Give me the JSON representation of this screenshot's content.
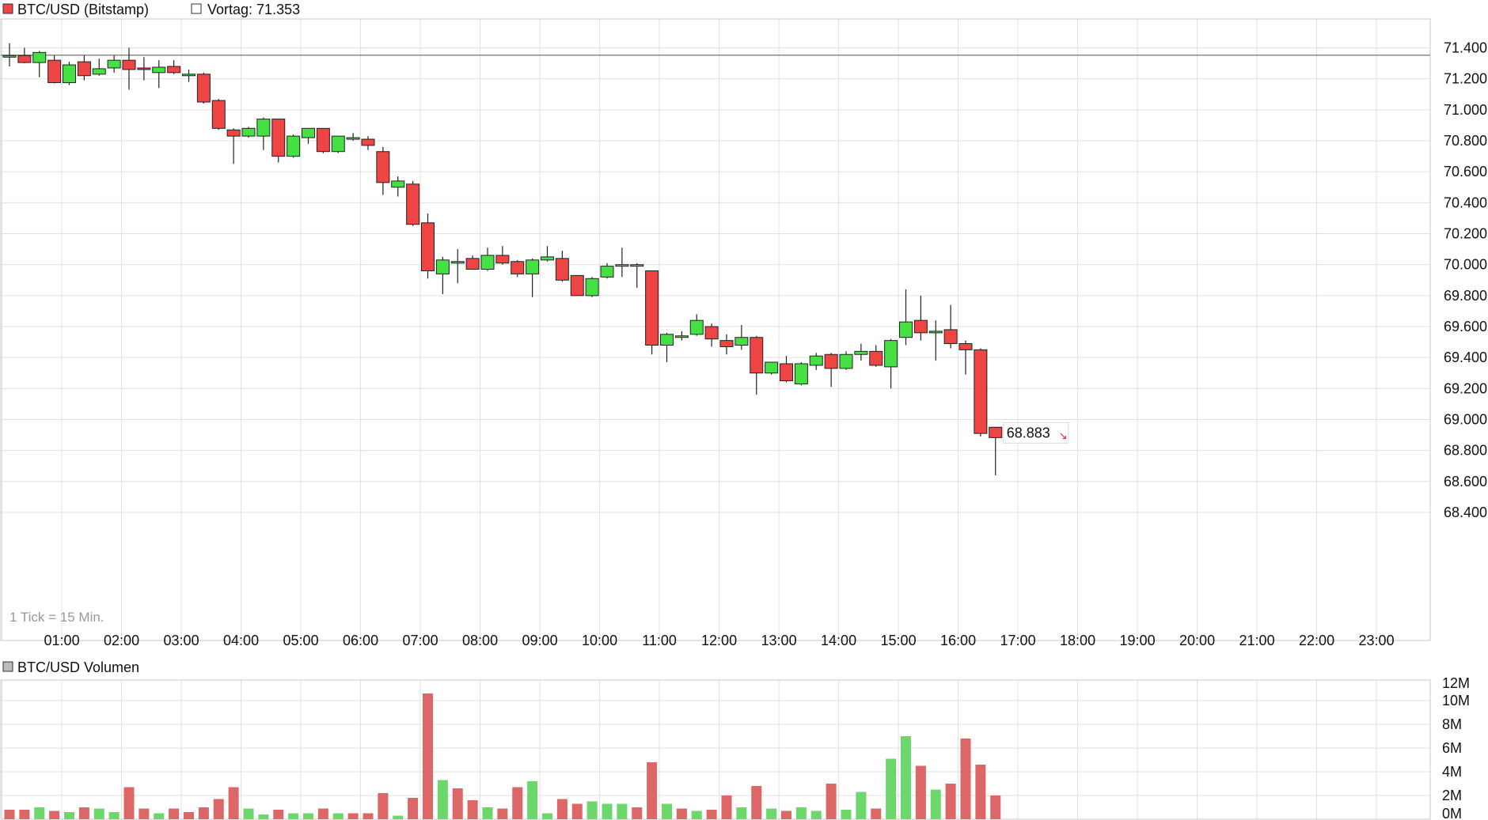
{
  "main_chart": {
    "legend_symbol_label": "BTC/USD (Bitstamp)",
    "prev_close_label": "Vortag: 71.353",
    "tick_note": "1 Tick = 15 Min.",
    "last_price_label": "68.883"
  },
  "volume_chart": {
    "legend_label": "BTC/USD Volumen"
  },
  "colors": {
    "up": "#44e044",
    "down": "#ee4444",
    "vol_up": "#6cd86c",
    "vol_down": "#dd6666",
    "grid": "#e0e0e0",
    "prev_close_line": "#888888"
  },
  "chart_data": [
    {
      "type": "candlestick",
      "series_name": "BTC/USD (Bitstamp)",
      "y_tick_labels": [
        "71.400",
        "71.200",
        "71.000",
        "70.800",
        "70.600",
        "70.400",
        "70.200",
        "70.000",
        "69.800",
        "69.600",
        "69.400",
        "69.200",
        "69.000",
        "68.800",
        "68.600",
        "68.400"
      ],
      "y_tick_values": [
        71400,
        71200,
        71000,
        70800,
        70600,
        70400,
        70200,
        70000,
        69800,
        69600,
        69400,
        69200,
        69000,
        68800,
        68600,
        68400
      ],
      "x_tick_labels": [
        "01:00",
        "02:00",
        "03:00",
        "04:00",
        "05:00",
        "06:00",
        "07:00",
        "08:00",
        "09:00",
        "10:00",
        "11:00",
        "12:00",
        "13:00",
        "14:00",
        "15:00",
        "16:00",
        "17:00",
        "18:00",
        "19:00",
        "20:00",
        "21:00",
        "22:00",
        "23:00"
      ],
      "x_range_hours": [
        0,
        24
      ],
      "ylim": [
        68400,
        71450
      ],
      "prev_close": 71353,
      "last": 68883,
      "candles": [
        {
          "t": 0.0,
          "o": 71350,
          "h": 71430,
          "l": 71280,
          "c": 71350
        },
        {
          "t": 0.25,
          "o": 71350,
          "h": 71400,
          "l": 71300,
          "c": 71305
        },
        {
          "t": 0.5,
          "o": 71305,
          "h": 71380,
          "l": 71210,
          "c": 71370
        },
        {
          "t": 0.75,
          "o": 71320,
          "h": 71350,
          "l": 71170,
          "c": 71175
        },
        {
          "t": 1.0,
          "o": 71175,
          "h": 71310,
          "l": 71160,
          "c": 71290
        },
        {
          "t": 1.25,
          "o": 71310,
          "h": 71350,
          "l": 71190,
          "c": 71220
        },
        {
          "t": 1.5,
          "o": 71230,
          "h": 71330,
          "l": 71220,
          "c": 71265
        },
        {
          "t": 1.75,
          "o": 71270,
          "h": 71350,
          "l": 71240,
          "c": 71320
        },
        {
          "t": 2.0,
          "o": 71320,
          "h": 71400,
          "l": 71130,
          "c": 71260
        },
        {
          "t": 2.25,
          "o": 71270,
          "h": 71340,
          "l": 71190,
          "c": 71260
        },
        {
          "t": 2.5,
          "o": 71240,
          "h": 71320,
          "l": 71140,
          "c": 71275
        },
        {
          "t": 2.75,
          "o": 71280,
          "h": 71320,
          "l": 71230,
          "c": 71240
        },
        {
          "t": 3.0,
          "o": 71230,
          "h": 71260,
          "l": 71180,
          "c": 71230
        },
        {
          "t": 3.25,
          "o": 71230,
          "h": 71240,
          "l": 71040,
          "c": 71050
        },
        {
          "t": 3.5,
          "o": 71060,
          "h": 71070,
          "l": 70870,
          "c": 70880
        },
        {
          "t": 3.75,
          "o": 70870,
          "h": 70880,
          "l": 70650,
          "c": 70830
        },
        {
          "t": 4.0,
          "o": 70830,
          "h": 70890,
          "l": 70820,
          "c": 70880
        },
        {
          "t": 4.25,
          "o": 70830,
          "h": 70950,
          "l": 70740,
          "c": 70940
        },
        {
          "t": 4.5,
          "o": 70940,
          "h": 70940,
          "l": 70660,
          "c": 70700
        },
        {
          "t": 4.75,
          "o": 70700,
          "h": 70840,
          "l": 70690,
          "c": 70830
        },
        {
          "t": 5.0,
          "o": 70820,
          "h": 70880,
          "l": 70780,
          "c": 70880
        },
        {
          "t": 5.25,
          "o": 70880,
          "h": 70880,
          "l": 70720,
          "c": 70730
        },
        {
          "t": 5.5,
          "o": 70730,
          "h": 70830,
          "l": 70720,
          "c": 70830
        },
        {
          "t": 5.75,
          "o": 70820,
          "h": 70850,
          "l": 70800,
          "c": 70820
        },
        {
          "t": 6.0,
          "o": 70810,
          "h": 70830,
          "l": 70740,
          "c": 70770
        },
        {
          "t": 6.25,
          "o": 70730,
          "h": 70760,
          "l": 70450,
          "c": 70530
        },
        {
          "t": 6.5,
          "o": 70500,
          "h": 70570,
          "l": 70440,
          "c": 70540
        },
        {
          "t": 6.75,
          "o": 70520,
          "h": 70540,
          "l": 70250,
          "c": 70260
        },
        {
          "t": 7.0,
          "o": 70270,
          "h": 70330,
          "l": 69910,
          "c": 69960
        },
        {
          "t": 7.25,
          "o": 69940,
          "h": 70050,
          "l": 69810,
          "c": 70030
        },
        {
          "t": 7.5,
          "o": 70010,
          "h": 70100,
          "l": 69880,
          "c": 70020
        },
        {
          "t": 7.75,
          "o": 70040,
          "h": 70060,
          "l": 69970,
          "c": 69970
        },
        {
          "t": 8.0,
          "o": 69970,
          "h": 70110,
          "l": 69960,
          "c": 70060
        },
        {
          "t": 8.25,
          "o": 70060,
          "h": 70120,
          "l": 70000,
          "c": 70010
        },
        {
          "t": 8.5,
          "o": 70020,
          "h": 70030,
          "l": 69920,
          "c": 69940
        },
        {
          "t": 8.75,
          "o": 69940,
          "h": 70040,
          "l": 69790,
          "c": 70030
        },
        {
          "t": 9.0,
          "o": 70030,
          "h": 70120,
          "l": 70020,
          "c": 70050
        },
        {
          "t": 9.25,
          "o": 70040,
          "h": 70090,
          "l": 69890,
          "c": 69900
        },
        {
          "t": 9.5,
          "o": 69930,
          "h": 69930,
          "l": 69800,
          "c": 69800
        },
        {
          "t": 9.75,
          "o": 69800,
          "h": 69920,
          "l": 69790,
          "c": 69910
        },
        {
          "t": 10.0,
          "o": 69920,
          "h": 70010,
          "l": 69910,
          "c": 69990
        },
        {
          "t": 10.25,
          "o": 69990,
          "h": 70110,
          "l": 69920,
          "c": 70000
        },
        {
          "t": 10.5,
          "o": 69990,
          "h": 70010,
          "l": 69850,
          "c": 70000
        },
        {
          "t": 10.75,
          "o": 69960,
          "h": 69960,
          "l": 69420,
          "c": 69480
        },
        {
          "t": 11.0,
          "o": 69480,
          "h": 69560,
          "l": 69370,
          "c": 69550
        },
        {
          "t": 11.25,
          "o": 69540,
          "h": 69570,
          "l": 69510,
          "c": 69540
        },
        {
          "t": 11.5,
          "o": 69550,
          "h": 69680,
          "l": 69540,
          "c": 69640
        },
        {
          "t": 11.75,
          "o": 69600,
          "h": 69620,
          "l": 69470,
          "c": 69520
        },
        {
          "t": 12.0,
          "o": 69510,
          "h": 69550,
          "l": 69420,
          "c": 69470
        },
        {
          "t": 12.25,
          "o": 69480,
          "h": 69610,
          "l": 69450,
          "c": 69530
        },
        {
          "t": 12.5,
          "o": 69530,
          "h": 69540,
          "l": 69160,
          "c": 69300
        },
        {
          "t": 12.75,
          "o": 69300,
          "h": 69370,
          "l": 69290,
          "c": 69370
        },
        {
          "t": 13.0,
          "o": 69360,
          "h": 69410,
          "l": 69240,
          "c": 69250
        },
        {
          "t": 13.25,
          "o": 69230,
          "h": 69370,
          "l": 69220,
          "c": 69360
        },
        {
          "t": 13.5,
          "o": 69350,
          "h": 69430,
          "l": 69320,
          "c": 69410
        },
        {
          "t": 13.75,
          "o": 69420,
          "h": 69430,
          "l": 69210,
          "c": 69330
        },
        {
          "t": 14.0,
          "o": 69330,
          "h": 69440,
          "l": 69320,
          "c": 69420
        },
        {
          "t": 14.25,
          "o": 69420,
          "h": 69490,
          "l": 69380,
          "c": 69440
        },
        {
          "t": 14.5,
          "o": 69440,
          "h": 69480,
          "l": 69340,
          "c": 69350
        },
        {
          "t": 14.75,
          "o": 69340,
          "h": 69520,
          "l": 69200,
          "c": 69510
        },
        {
          "t": 15.0,
          "o": 69530,
          "h": 69840,
          "l": 69480,
          "c": 69630
        },
        {
          "t": 15.25,
          "o": 69640,
          "h": 69800,
          "l": 69510,
          "c": 69560
        },
        {
          "t": 15.5,
          "o": 69570,
          "h": 69640,
          "l": 69380,
          "c": 69570
        },
        {
          "t": 15.75,
          "o": 69580,
          "h": 69740,
          "l": 69460,
          "c": 69490
        },
        {
          "t": 16.0,
          "o": 69490,
          "h": 69510,
          "l": 69290,
          "c": 69450
        },
        {
          "t": 16.25,
          "o": 69450,
          "h": 69460,
          "l": 68890,
          "c": 68910
        },
        {
          "t": 16.5,
          "o": 68950,
          "h": 68950,
          "l": 68640,
          "c": 68883
        }
      ]
    },
    {
      "type": "bar",
      "series_name": "BTC/USD Volumen",
      "y_tick_labels": [
        "12M",
        "10M",
        "8M",
        "6M",
        "4M",
        "2M",
        "0M"
      ],
      "y_tick_values": [
        12,
        10,
        8,
        6,
        4,
        2,
        0
      ],
      "ylim": [
        0,
        12
      ],
      "unit": "M",
      "bars": [
        {
          "t": 0.0,
          "v": 0.8,
          "dir": "down"
        },
        {
          "t": 0.25,
          "v": 0.8,
          "dir": "down"
        },
        {
          "t": 0.5,
          "v": 1.0,
          "dir": "up"
        },
        {
          "t": 0.75,
          "v": 0.7,
          "dir": "down"
        },
        {
          "t": 1.0,
          "v": 0.6,
          "dir": "up"
        },
        {
          "t": 1.25,
          "v": 1.0,
          "dir": "down"
        },
        {
          "t": 1.5,
          "v": 0.9,
          "dir": "up"
        },
        {
          "t": 1.75,
          "v": 0.6,
          "dir": "up"
        },
        {
          "t": 2.0,
          "v": 2.7,
          "dir": "down"
        },
        {
          "t": 2.25,
          "v": 0.9,
          "dir": "down"
        },
        {
          "t": 2.5,
          "v": 0.5,
          "dir": "up"
        },
        {
          "t": 2.75,
          "v": 0.9,
          "dir": "down"
        },
        {
          "t": 3.0,
          "v": 0.6,
          "dir": "down"
        },
        {
          "t": 3.25,
          "v": 1.0,
          "dir": "down"
        },
        {
          "t": 3.5,
          "v": 1.7,
          "dir": "down"
        },
        {
          "t": 3.75,
          "v": 2.7,
          "dir": "down"
        },
        {
          "t": 4.0,
          "v": 0.9,
          "dir": "up"
        },
        {
          "t": 4.25,
          "v": 0.4,
          "dir": "up"
        },
        {
          "t": 4.5,
          "v": 0.8,
          "dir": "down"
        },
        {
          "t": 4.75,
          "v": 0.5,
          "dir": "up"
        },
        {
          "t": 5.0,
          "v": 0.5,
          "dir": "up"
        },
        {
          "t": 5.25,
          "v": 0.9,
          "dir": "down"
        },
        {
          "t": 5.5,
          "v": 0.5,
          "dir": "up"
        },
        {
          "t": 5.75,
          "v": 0.5,
          "dir": "down"
        },
        {
          "t": 6.0,
          "v": 0.5,
          "dir": "down"
        },
        {
          "t": 6.25,
          "v": 2.2,
          "dir": "down"
        },
        {
          "t": 6.5,
          "v": 0.3,
          "dir": "up"
        },
        {
          "t": 6.75,
          "v": 1.8,
          "dir": "down"
        },
        {
          "t": 7.0,
          "v": 10.6,
          "dir": "down"
        },
        {
          "t": 7.25,
          "v": 3.3,
          "dir": "up"
        },
        {
          "t": 7.5,
          "v": 2.6,
          "dir": "down"
        },
        {
          "t": 7.75,
          "v": 1.6,
          "dir": "down"
        },
        {
          "t": 8.0,
          "v": 1.0,
          "dir": "up"
        },
        {
          "t": 8.25,
          "v": 0.9,
          "dir": "down"
        },
        {
          "t": 8.5,
          "v": 2.7,
          "dir": "down"
        },
        {
          "t": 8.75,
          "v": 3.2,
          "dir": "up"
        },
        {
          "t": 9.0,
          "v": 0.5,
          "dir": "up"
        },
        {
          "t": 9.25,
          "v": 1.7,
          "dir": "down"
        },
        {
          "t": 9.5,
          "v": 1.3,
          "dir": "down"
        },
        {
          "t": 9.75,
          "v": 1.5,
          "dir": "up"
        },
        {
          "t": 10.0,
          "v": 1.3,
          "dir": "up"
        },
        {
          "t": 10.25,
          "v": 1.3,
          "dir": "up"
        },
        {
          "t": 10.5,
          "v": 1.0,
          "dir": "down"
        },
        {
          "t": 10.75,
          "v": 4.8,
          "dir": "down"
        },
        {
          "t": 11.0,
          "v": 1.3,
          "dir": "up"
        },
        {
          "t": 11.25,
          "v": 0.9,
          "dir": "down"
        },
        {
          "t": 11.5,
          "v": 0.7,
          "dir": "up"
        },
        {
          "t": 11.75,
          "v": 0.8,
          "dir": "down"
        },
        {
          "t": 12.0,
          "v": 2.0,
          "dir": "down"
        },
        {
          "t": 12.25,
          "v": 1.0,
          "dir": "up"
        },
        {
          "t": 12.5,
          "v": 2.8,
          "dir": "down"
        },
        {
          "t": 12.75,
          "v": 0.9,
          "dir": "up"
        },
        {
          "t": 13.0,
          "v": 0.7,
          "dir": "down"
        },
        {
          "t": 13.25,
          "v": 1.0,
          "dir": "up"
        },
        {
          "t": 13.5,
          "v": 0.7,
          "dir": "up"
        },
        {
          "t": 13.75,
          "v": 3.0,
          "dir": "down"
        },
        {
          "t": 14.0,
          "v": 0.8,
          "dir": "up"
        },
        {
          "t": 14.25,
          "v": 2.3,
          "dir": "up"
        },
        {
          "t": 14.5,
          "v": 0.9,
          "dir": "down"
        },
        {
          "t": 14.75,
          "v": 5.1,
          "dir": "up"
        },
        {
          "t": 15.0,
          "v": 7.0,
          "dir": "up"
        },
        {
          "t": 15.25,
          "v": 4.5,
          "dir": "down"
        },
        {
          "t": 15.5,
          "v": 2.5,
          "dir": "up"
        },
        {
          "t": 15.75,
          "v": 3.0,
          "dir": "down"
        },
        {
          "t": 16.0,
          "v": 6.8,
          "dir": "down"
        },
        {
          "t": 16.25,
          "v": 4.6,
          "dir": "down"
        },
        {
          "t": 16.5,
          "v": 2.0,
          "dir": "down"
        }
      ]
    }
  ]
}
